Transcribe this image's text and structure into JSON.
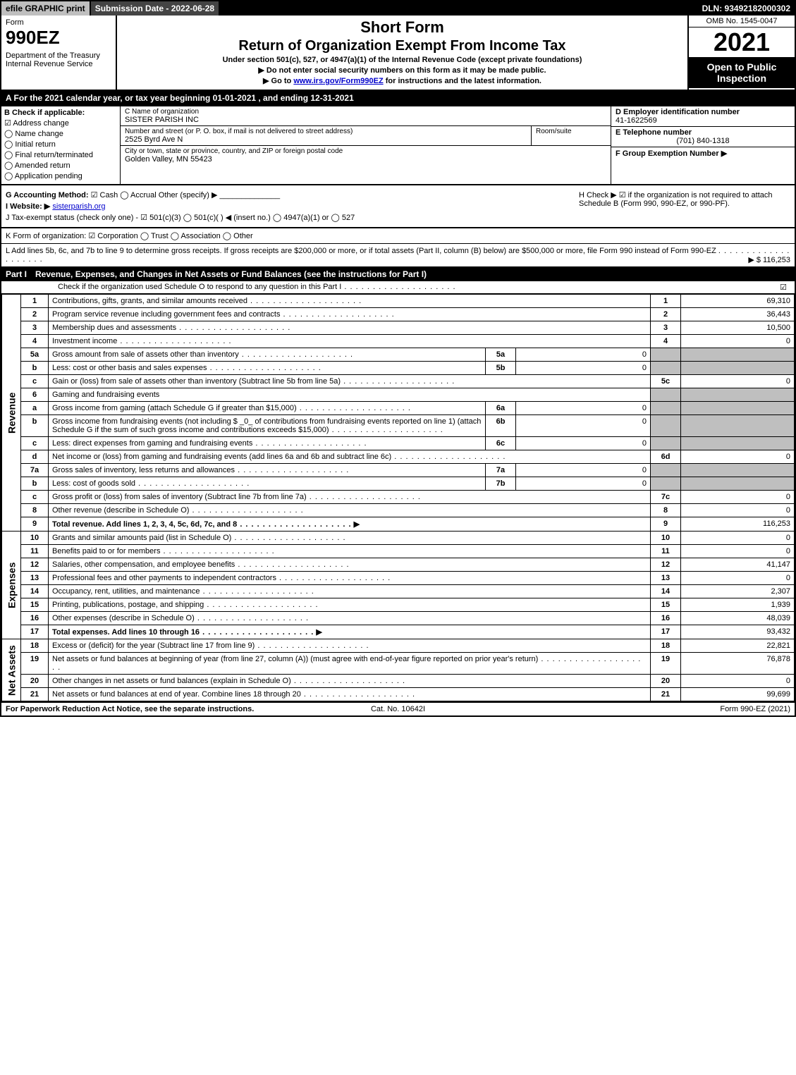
{
  "top_bar": {
    "efile": "efile GRAPHIC print",
    "submission_date_label": "Submission Date - 2022-06-28",
    "dln": "DLN: 93492182000302"
  },
  "header": {
    "form_word": "Form",
    "form_number": "990EZ",
    "dept": "Department of the Treasury\nInternal Revenue Service",
    "short_form": "Short Form",
    "main_title": "Return of Organization Exempt From Income Tax",
    "under_section": "Under section 501(c), 527, or 4947(a)(1) of the Internal Revenue Code (except private foundations)",
    "do_not_enter": "▶ Do not enter social security numbers on this form as it may be made public.",
    "goto_pre": "▶ Go to ",
    "goto_link": "www.irs.gov/Form990EZ",
    "goto_post": " for instructions and the latest information.",
    "omb": "OMB No. 1545-0047",
    "tax_year": "2021",
    "open_public": "Open to Public Inspection"
  },
  "section_a": "A  For the 2021 calendar year, or tax year beginning 01-01-2021 , and ending 12-31-2021",
  "section_b": {
    "title": "B  Check if applicable:",
    "items": [
      {
        "label": "Address change",
        "checked": true
      },
      {
        "label": "Name change",
        "checked": false
      },
      {
        "label": "Initial return",
        "checked": false
      },
      {
        "label": "Final return/terminated",
        "checked": false
      },
      {
        "label": "Amended return",
        "checked": false
      },
      {
        "label": "Application pending",
        "checked": false
      }
    ]
  },
  "section_c": {
    "name_label": "C Name of organization",
    "name": "SISTER PARISH INC",
    "street_label": "Number and street (or P. O. box, if mail is not delivered to street address)",
    "street": "2525 Byrd Ave N",
    "room_label": "Room/suite",
    "room": "",
    "city_label": "City or town, state or province, country, and ZIP or foreign postal code",
    "city": "Golden Valley, MN  55423"
  },
  "section_def": {
    "d_label": "D Employer identification number",
    "d_value": "41-1622569",
    "e_label": "E Telephone number",
    "e_value": "(701) 840-1318",
    "f_label": "F Group Exemption Number  ▶",
    "f_value": ""
  },
  "section_g": {
    "label": "G Accounting Method:",
    "cash_checked": true,
    "cash": "Cash",
    "accrual": "Accrual",
    "other": "Other (specify) ▶"
  },
  "section_h": {
    "text": "H  Check ▶ ☑ if the organization is not required to attach Schedule B (Form 990, 990-EZ, or 990-PF)."
  },
  "section_i": {
    "label": "I Website: ▶",
    "link": "sisterparish.org"
  },
  "section_j": {
    "text": "J Tax-exempt status (check only one) - ☑ 501(c)(3)  ◯ 501(c)(  ) ◀ (insert no.)  ◯ 4947(a)(1) or  ◯ 527"
  },
  "section_k": "K Form of organization:  ☑ Corporation  ◯ Trust  ◯ Association  ◯ Other",
  "section_l": {
    "text": "L Add lines 5b, 6c, and 7b to line 9 to determine gross receipts. If gross receipts are $200,000 or more, or if total assets (Part II, column (B) below) are $500,000 or more, file Form 990 instead of Form 990-EZ",
    "amount": "▶ $ 116,253"
  },
  "part1": {
    "num": "Part I",
    "title": "Revenue, Expenses, and Changes in Net Assets or Fund Balances (see the instructions for Part I)",
    "sub": "Check if the organization used Schedule O to respond to any question in this Part I",
    "sub_checked": "☑",
    "vlabels": {
      "revenue": "Revenue",
      "expenses": "Expenses",
      "netassets": "Net Assets"
    },
    "rows": [
      {
        "n": "1",
        "desc": "Contributions, gifts, grants, and similar amounts received",
        "outn": "1",
        "outv": "69,310"
      },
      {
        "n": "2",
        "desc": "Program service revenue including government fees and contracts",
        "outn": "2",
        "outv": "36,443"
      },
      {
        "n": "3",
        "desc": "Membership dues and assessments",
        "outn": "3",
        "outv": "10,500"
      },
      {
        "n": "4",
        "desc": "Investment income",
        "outn": "4",
        "outv": "0"
      },
      {
        "n": "5a",
        "desc": "Gross amount from sale of assets other than inventory",
        "inn": "5a",
        "inv": "0"
      },
      {
        "n": "b",
        "desc": "Less: cost or other basis and sales expenses",
        "inn": "5b",
        "inv": "0"
      },
      {
        "n": "c",
        "desc": "Gain or (loss) from sale of assets other than inventory (Subtract line 5b from line 5a)",
        "outn": "5c",
        "outv": "0"
      },
      {
        "n": "6",
        "desc": "Gaming and fundraising events"
      },
      {
        "n": "a",
        "desc": "Gross income from gaming (attach Schedule G if greater than $15,000)",
        "inn": "6a",
        "inv": "0"
      },
      {
        "n": "b",
        "desc": "Gross income from fundraising events (not including $ _0_ of contributions from fundraising events reported on line 1) (attach Schedule G if the sum of such gross income and contributions exceeds $15,000)",
        "inn": "6b",
        "inv": "0"
      },
      {
        "n": "c",
        "desc": "Less: direct expenses from gaming and fundraising events",
        "inn": "6c",
        "inv": "0"
      },
      {
        "n": "d",
        "desc": "Net income or (loss) from gaming and fundraising events (add lines 6a and 6b and subtract line 6c)",
        "outn": "6d",
        "outv": "0"
      },
      {
        "n": "7a",
        "desc": "Gross sales of inventory, less returns and allowances",
        "inn": "7a",
        "inv": "0"
      },
      {
        "n": "b",
        "desc": "Less: cost of goods sold",
        "inn": "7b",
        "inv": "0"
      },
      {
        "n": "c",
        "desc": "Gross profit or (loss) from sales of inventory (Subtract line 7b from line 7a)",
        "outn": "7c",
        "outv": "0"
      },
      {
        "n": "8",
        "desc": "Other revenue (describe in Schedule O)",
        "outn": "8",
        "outv": "0"
      },
      {
        "n": "9",
        "desc": "Total revenue. Add lines 1, 2, 3, 4, 5c, 6d, 7c, and 8",
        "bold": true,
        "arrow": true,
        "outn": "9",
        "outv": "116,253"
      },
      {
        "n": "10",
        "desc": "Grants and similar amounts paid (list in Schedule O)",
        "outn": "10",
        "outv": "0",
        "sec": "exp"
      },
      {
        "n": "11",
        "desc": "Benefits paid to or for members",
        "outn": "11",
        "outv": "0",
        "sec": "exp"
      },
      {
        "n": "12",
        "desc": "Salaries, other compensation, and employee benefits",
        "outn": "12",
        "outv": "41,147",
        "sec": "exp"
      },
      {
        "n": "13",
        "desc": "Professional fees and other payments to independent contractors",
        "outn": "13",
        "outv": "0",
        "sec": "exp"
      },
      {
        "n": "14",
        "desc": "Occupancy, rent, utilities, and maintenance",
        "outn": "14",
        "outv": "2,307",
        "sec": "exp"
      },
      {
        "n": "15",
        "desc": "Printing, publications, postage, and shipping",
        "outn": "15",
        "outv": "1,939",
        "sec": "exp"
      },
      {
        "n": "16",
        "desc": "Other expenses (describe in Schedule O)",
        "outn": "16",
        "outv": "48,039",
        "sec": "exp"
      },
      {
        "n": "17",
        "desc": "Total expenses. Add lines 10 through 16",
        "bold": true,
        "arrow": true,
        "outn": "17",
        "outv": "93,432",
        "sec": "exp"
      },
      {
        "n": "18",
        "desc": "Excess or (deficit) for the year (Subtract line 17 from line 9)",
        "outn": "18",
        "outv": "22,821",
        "sec": "na"
      },
      {
        "n": "19",
        "desc": "Net assets or fund balances at beginning of year (from line 27, column (A)) (must agree with end-of-year figure reported on prior year's return)",
        "outn": "19",
        "outv": "76,878",
        "sec": "na"
      },
      {
        "n": "20",
        "desc": "Other changes in net assets or fund balances (explain in Schedule O)",
        "outn": "20",
        "outv": "0",
        "sec": "na"
      },
      {
        "n": "21",
        "desc": "Net assets or fund balances at end of year. Combine lines 18 through 20",
        "outn": "21",
        "outv": "99,699",
        "sec": "na"
      }
    ]
  },
  "footer": {
    "left": "For Paperwork Reduction Act Notice, see the separate instructions.",
    "center": "Cat. No. 10642I",
    "right": "Form 990-EZ (2021)"
  }
}
